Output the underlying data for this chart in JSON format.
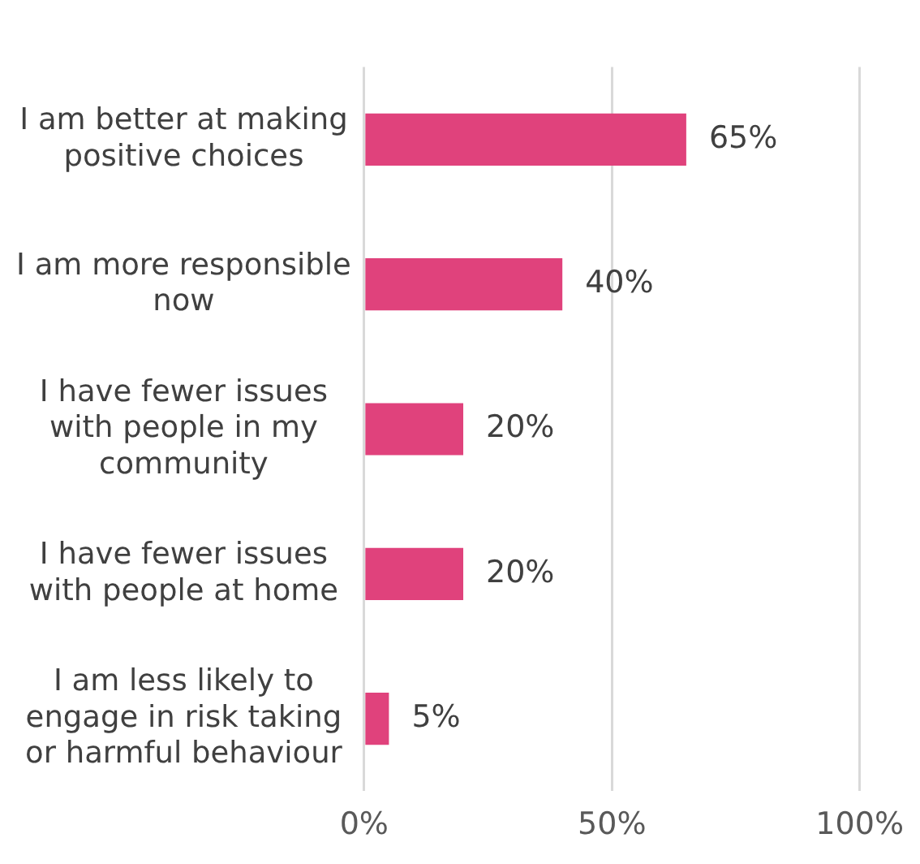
{
  "chart_data": {
    "type": "bar",
    "orientation": "horizontal",
    "categories": [
      "I am better at making\npositive choices",
      "I am more responsible\nnow",
      "I have fewer issues\nwith people in my\ncommunity",
      "I have fewer issues\nwith people at home",
      "I am less likely to\nengage in risk taking\nor harmful behaviour"
    ],
    "values": [
      65,
      40,
      20,
      20,
      5
    ],
    "value_labels": [
      "65%",
      "40%",
      "20%",
      "20%",
      "5%"
    ],
    "color": "#e0427c",
    "xlim": [
      0,
      100
    ],
    "xticks": [
      {
        "value": 0,
        "label": "0%"
      },
      {
        "value": 50,
        "label": "50%"
      },
      {
        "value": 100,
        "label": "100%"
      }
    ],
    "grid": "x",
    "legend": false
  }
}
